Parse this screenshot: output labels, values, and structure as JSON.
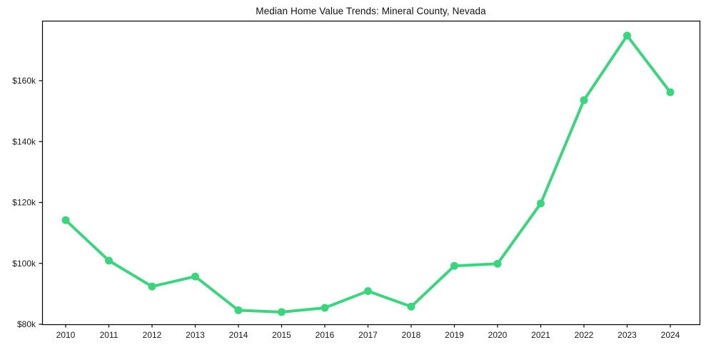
{
  "figure": {
    "title": "Median Home Value Trends: Mineral County, Nevada"
  },
  "chart_data": {
    "type": "line",
    "title": "Median Home Value Trends: Mineral County, Nevada",
    "x": [
      2010,
      2011,
      2012,
      2013,
      2014,
      2015,
      2016,
      2017,
      2018,
      2019,
      2020,
      2021,
      2022,
      2023,
      2024
    ],
    "series": [
      {
        "name": "Median Home Value",
        "values": [
          114200,
          100900,
          92400,
          95700,
          84600,
          84000,
          85400,
          90900,
          85800,
          99200,
          99900,
          119700,
          153600,
          174800,
          156200
        ]
      }
    ],
    "xlabel": "",
    "ylabel": "",
    "ylim": [
      80000,
      179700
    ],
    "yticks": {
      "values": [
        80000,
        100000,
        120000,
        140000,
        160000
      ],
      "labels": [
        "$80k",
        "$100k",
        "$120k",
        "$140k",
        "$160k"
      ]
    },
    "xtick_labels": [
      "2010",
      "2011",
      "2012",
      "2013",
      "2014",
      "2015",
      "2016",
      "2017",
      "2018",
      "2019",
      "2020",
      "2021",
      "2022",
      "2023",
      "2024"
    ],
    "grid": false,
    "legend": "none",
    "marker": "circle",
    "line_color": "#3dd47f",
    "marker_color": "#3dd47f",
    "axis_color": "#000000",
    "tick_text_color": "#1a1a1a"
  }
}
